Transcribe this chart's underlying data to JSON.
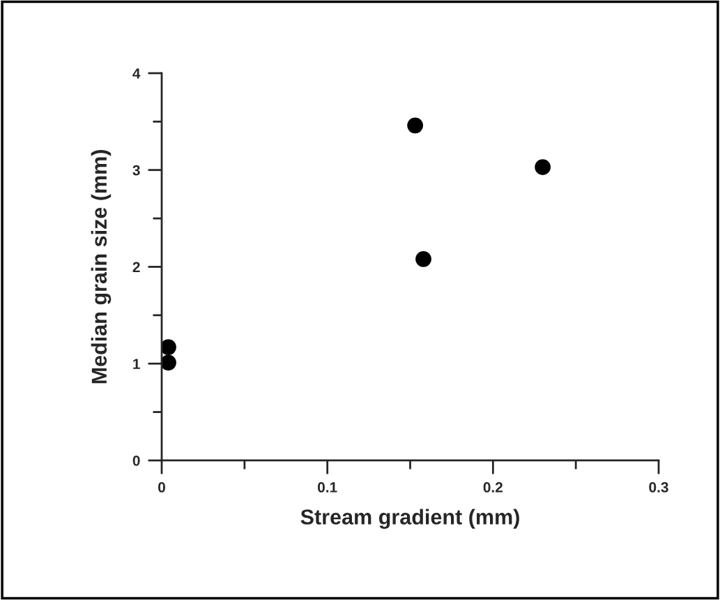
{
  "chart_data": {
    "type": "scatter",
    "xlabel": "Stream gradient (mm)",
    "ylabel": "Median grain size (mm)",
    "x": [
      0.004,
      0.004,
      0.153,
      0.158,
      0.23
    ],
    "values": [
      1.17,
      1.01,
      3.46,
      2.08,
      3.03
    ],
    "color": "#000000",
    "marker": "circle",
    "xlim": [
      0,
      0.3
    ],
    "ylim": [
      0,
      4
    ],
    "xticks": [
      0,
      {
        "value": 0.05,
        "label": null
      },
      0.1,
      {
        "value": 0.15,
        "label": null
      },
      0.2,
      {
        "value": 0.25,
        "label": null
      },
      0.3
    ],
    "yticks": [
      0,
      {
        "value": 0.5,
        "label": null
      },
      1,
      {
        "value": 1.5,
        "label": null
      },
      2,
      {
        "value": 2.5,
        "label": null
      },
      3,
      {
        "value": 3.5,
        "label": null
      },
      4
    ],
    "grid": false,
    "legend": false
  }
}
